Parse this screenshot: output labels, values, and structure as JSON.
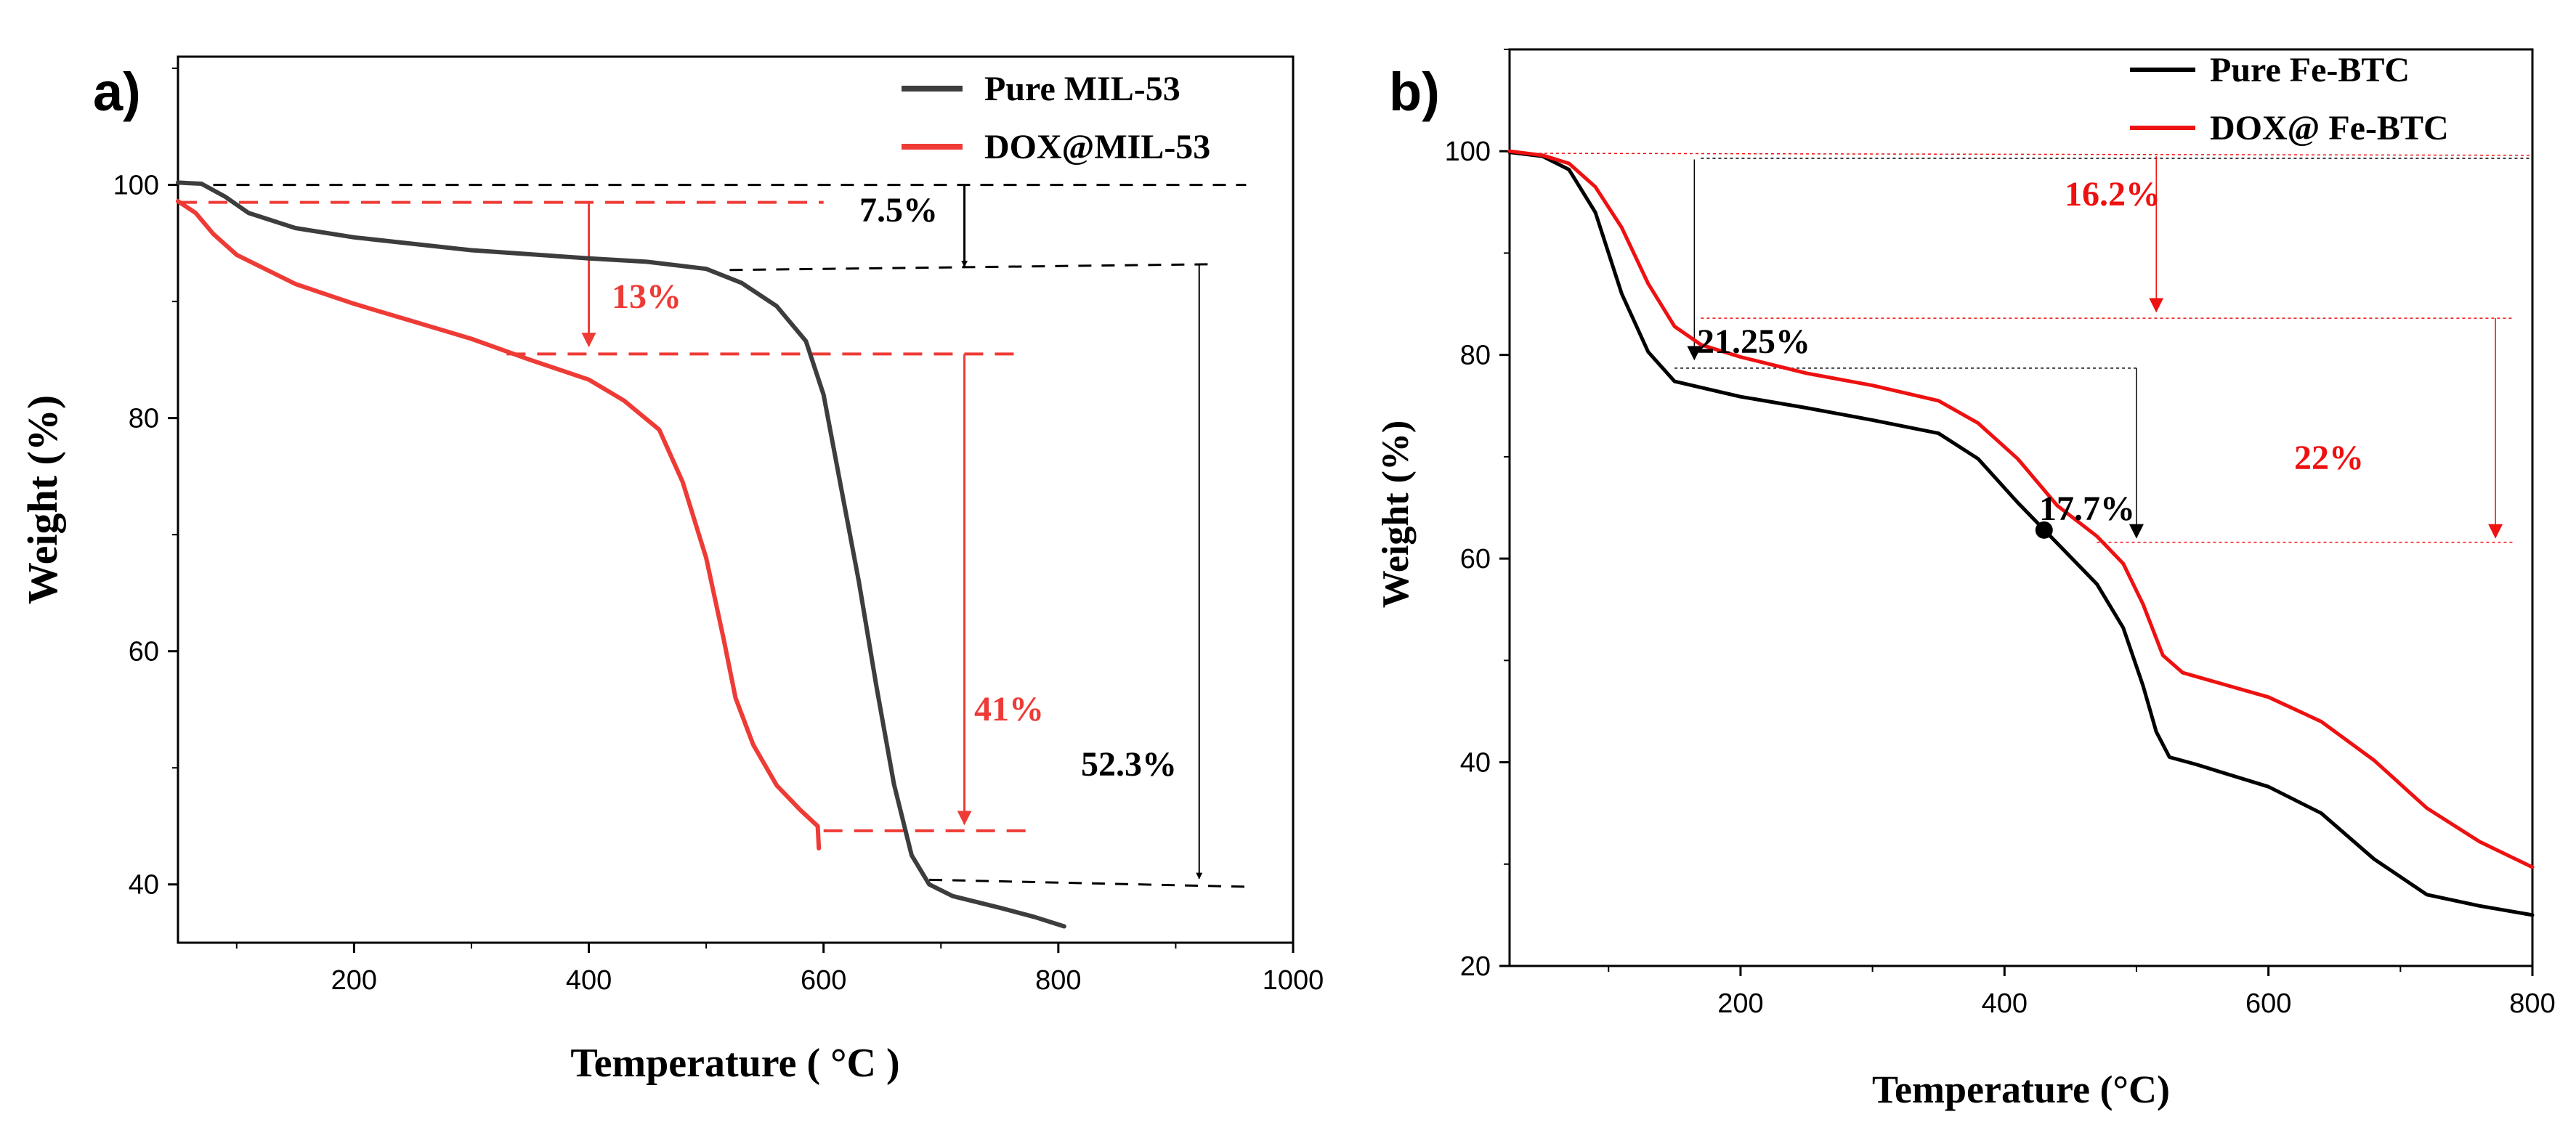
{
  "chart_data": [
    {
      "panel": "a)",
      "type": "line",
      "xlabel": "Temperature ( °C )",
      "ylabel": "Weight (%)",
      "xlim": [
        50,
        1000
      ],
      "ylim": [
        35,
        111
      ],
      "xticks": [
        200,
        400,
        600,
        800,
        1000
      ],
      "yticks": [
        40,
        60,
        80,
        100
      ],
      "legend_position": "top-right",
      "series": [
        {
          "name": "Pure MIL-53",
          "color": "#3d3d3d",
          "points": [
            [
              50,
              100.2
            ],
            [
              70,
              100.1
            ],
            [
              90,
              99
            ],
            [
              110,
              97.6
            ],
            [
              150,
              96.3
            ],
            [
              200,
              95.5
            ],
            [
              300,
              94.4
            ],
            [
              400,
              93.7
            ],
            [
              450,
              93.4
            ],
            [
              500,
              92.8
            ],
            [
              530,
              91.6
            ],
            [
              560,
              89.6
            ],
            [
              585,
              86.6
            ],
            [
              600,
              82
            ],
            [
              615,
              74
            ],
            [
              630,
              66
            ],
            [
              645,
              57
            ],
            [
              660,
              48.6
            ],
            [
              675,
              42.5
            ],
            [
              690,
              40
            ],
            [
              710,
              39
            ],
            [
              750,
              38
            ],
            [
              780,
              37.2
            ],
            [
              805,
              36.4
            ]
          ]
        },
        {
          "name": "DOX@MIL-53",
          "color": "#ee3b36",
          "points": [
            [
              50,
              98.6
            ],
            [
              65,
              97.6
            ],
            [
              80,
              95.8
            ],
            [
              100,
              94
            ],
            [
              150,
              91.5
            ],
            [
              200,
              89.8
            ],
            [
              250,
              88.3
            ],
            [
              300,
              86.8
            ],
            [
              350,
              85
            ],
            [
              400,
              83.3
            ],
            [
              430,
              81.5
            ],
            [
              460,
              79
            ],
            [
              480,
              74.5
            ],
            [
              500,
              68
            ],
            [
              515,
              61
            ],
            [
              525,
              56
            ],
            [
              540,
              52
            ],
            [
              560,
              48.5
            ],
            [
              580,
              46.4
            ],
            [
              595,
              45
            ],
            [
              596,
              43.1
            ]
          ]
        }
      ],
      "annotations": [
        {
          "text": "7.5%",
          "color": "#000000"
        },
        {
          "text": "13%",
          "color": "#ee3b36"
        },
        {
          "text": "41%",
          "color": "#ee3b36"
        },
        {
          "text": "52.3%",
          "color": "#000000"
        }
      ]
    },
    {
      "panel": "b)",
      "type": "line",
      "xlabel": "Temperature (°C)",
      "ylabel": "Weight (%)",
      "xlim": [
        25,
        800
      ],
      "ylim": [
        20,
        110
      ],
      "xticks": [
        200,
        400,
        600,
        800
      ],
      "yticks": [
        20,
        40,
        60,
        80,
        100
      ],
      "legend_position": "top-right",
      "series": [
        {
          "name": "Pure Fe-BTC",
          "color": "#000000",
          "points": [
            [
              25,
              99.9
            ],
            [
              50,
              99.5
            ],
            [
              70,
              98.2
            ],
            [
              90,
              94
            ],
            [
              110,
              86
            ],
            [
              130,
              80.3
            ],
            [
              150,
              77.4
            ],
            [
              200,
              75.9
            ],
            [
              250,
              74.8
            ],
            [
              300,
              73.6
            ],
            [
              350,
              72.3
            ],
            [
              380,
              69.8
            ],
            [
              410,
              65.5
            ],
            [
              440,
              61.5
            ],
            [
              470,
              57.5
            ],
            [
              490,
              53.2
            ],
            [
              505,
              47.5
            ],
            [
              515,
              43
            ],
            [
              525,
              40.5
            ],
            [
              545,
              39.8
            ],
            [
              600,
              37.6
            ],
            [
              640,
              35
            ],
            [
              680,
              30.5
            ],
            [
              720,
              27
            ],
            [
              760,
              25.9
            ],
            [
              800,
              25
            ]
          ]
        },
        {
          "name": "DOX@ Fe-BTC",
          "color": "#ee1111",
          "points": [
            [
              25,
              100
            ],
            [
              50,
              99.6
            ],
            [
              70,
              98.8
            ],
            [
              90,
              96.5
            ],
            [
              110,
              92.5
            ],
            [
              130,
              87
            ],
            [
              150,
              82.8
            ],
            [
              170,
              81
            ],
            [
              200,
              79.8
            ],
            [
              250,
              78.2
            ],
            [
              300,
              77
            ],
            [
              350,
              75.5
            ],
            [
              380,
              73.3
            ],
            [
              410,
              69.8
            ],
            [
              440,
              65.2
            ],
            [
              470,
              62.2
            ],
            [
              490,
              59.5
            ],
            [
              505,
              55.5
            ],
            [
              520,
              50.5
            ],
            [
              535,
              48.8
            ],
            [
              600,
              46.4
            ],
            [
              640,
              44
            ],
            [
              680,
              40.2
            ],
            [
              720,
              35.5
            ],
            [
              760,
              32.2
            ],
            [
              800,
              29.7
            ]
          ]
        }
      ],
      "annotations": [
        {
          "text": "16.2%",
          "color": "#ee1111"
        },
        {
          "text": "21.25%",
          "color": "#000000"
        },
        {
          "text": "22%",
          "color": "#ee1111"
        },
        {
          "text": "17.7%",
          "color": "#000000"
        }
      ]
    }
  ]
}
